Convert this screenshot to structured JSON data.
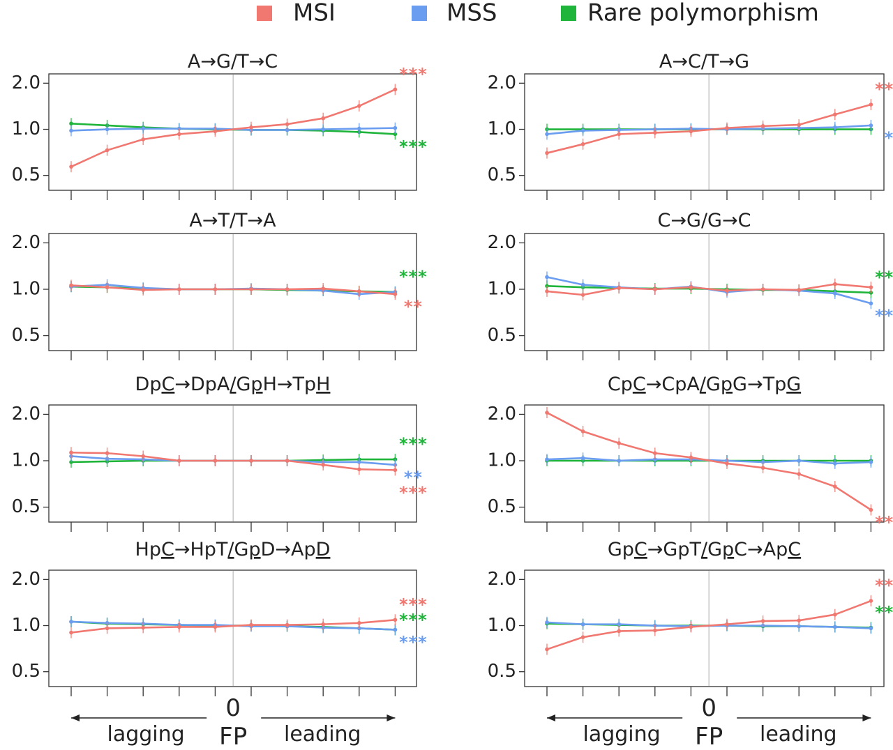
{
  "legend": [
    {
      "name": "MSI",
      "color": "#f07870"
    },
    {
      "name": "MSS",
      "color": "#6a9df0"
    },
    {
      "name": "Rare polymorphism",
      "color": "#1fb43a"
    }
  ],
  "axis": {
    "zero_label": "0",
    "fp_label": "FP",
    "left_label": "lagging",
    "right_label": "leading"
  },
  "chart_data": [
    {
      "type": "line",
      "title": "A→G/T→C",
      "y_ticks": [
        "2.0",
        "1.0",
        "0.5"
      ],
      "ylim": [
        0.4,
        2.3
      ],
      "x": [
        -5,
        -4,
        -3,
        -2,
        -1,
        1,
        2,
        3,
        4,
        5
      ],
      "series": [
        {
          "name": "MSI",
          "values": [
            0.57,
            0.73,
            0.86,
            0.93,
            0.97,
            1.03,
            1.08,
            1.18,
            1.42,
            1.82
          ],
          "significance": "***"
        },
        {
          "name": "MSS",
          "values": [
            0.98,
            1.0,
            1.01,
            1.01,
            1.01,
            0.99,
            0.99,
            1.0,
            1.01,
            1.02
          ],
          "significance": ""
        },
        {
          "name": "Rare polymorphism",
          "values": [
            1.09,
            1.06,
            1.03,
            1.01,
            1.0,
            0.99,
            0.99,
            0.98,
            0.96,
            0.93
          ],
          "significance": "***"
        }
      ]
    },
    {
      "type": "line",
      "title": "A→C/T→G",
      "y_ticks": [
        "2.0",
        "1.0",
        "0.5"
      ],
      "ylim": [
        0.4,
        2.3
      ],
      "x": [
        -5,
        -4,
        -3,
        -2,
        -1,
        1,
        2,
        3,
        4,
        5
      ],
      "series": [
        {
          "name": "MSI",
          "values": [
            0.7,
            0.8,
            0.93,
            0.95,
            0.97,
            1.02,
            1.05,
            1.07,
            1.25,
            1.45
          ],
          "significance": "***"
        },
        {
          "name": "MSS",
          "values": [
            0.93,
            0.98,
            0.99,
            1.0,
            1.01,
            1.0,
            1.01,
            1.02,
            1.03,
            1.06
          ],
          "significance": "*"
        },
        {
          "name": "Rare polymorphism",
          "values": [
            1.0,
            1.0,
            1.0,
            1.0,
            1.0,
            1.0,
            1.0,
            1.0,
            1.0,
            1.0
          ],
          "significance": ""
        }
      ]
    },
    {
      "type": "line",
      "title": "A→T/T→A",
      "y_ticks": [
        "2.0",
        "1.0",
        "0.5"
      ],
      "ylim": [
        0.4,
        2.3
      ],
      "x": [
        -5,
        -4,
        -3,
        -2,
        -1,
        1,
        2,
        3,
        4,
        5
      ],
      "series": [
        {
          "name": "MSI",
          "values": [
            1.06,
            1.03,
            0.99,
            1.0,
            1.0,
            1.0,
            1.0,
            1.01,
            0.97,
            0.93
          ],
          "significance": "**"
        },
        {
          "name": "MSS",
          "values": [
            1.04,
            1.07,
            1.02,
            1.0,
            1.0,
            1.01,
            1.0,
            0.98,
            0.93,
            0.96
          ],
          "significance": ""
        },
        {
          "name": "Rare polymorphism",
          "values": [
            1.04,
            1.03,
            1.01,
            1.0,
            1.0,
            1.0,
            0.99,
            0.98,
            0.97,
            0.96
          ],
          "significance": "***"
        }
      ]
    },
    {
      "type": "line",
      "title": "C→G/G→C",
      "y_ticks": [
        "2.0",
        "1.0",
        "0.5"
      ],
      "ylim": [
        0.4,
        2.3
      ],
      "x": [
        -5,
        -4,
        -3,
        -2,
        -1,
        1,
        2,
        3,
        4,
        5
      ],
      "series": [
        {
          "name": "MSI",
          "values": [
            0.97,
            0.92,
            1.02,
            1.0,
            1.03,
            0.98,
            1.0,
            0.99,
            1.08,
            1.03
          ],
          "significance": ""
        },
        {
          "name": "MSS",
          "values": [
            1.2,
            1.07,
            1.03,
            1.0,
            1.04,
            0.96,
            1.0,
            0.98,
            0.94,
            0.81
          ],
          "significance": "***"
        },
        {
          "name": "Rare polymorphism",
          "values": [
            1.05,
            1.03,
            1.02,
            1.01,
            1.01,
            1.0,
            0.99,
            0.99,
            0.97,
            0.95
          ],
          "significance": "***"
        }
      ]
    },
    {
      "type": "line",
      "title": "DpC→DpA/GpH→TpH",
      "underline_chars": [
        2,
        7,
        9,
        14
      ],
      "y_ticks": [
        "2.0",
        "1.0",
        "0.5"
      ],
      "ylim": [
        0.4,
        2.3
      ],
      "x": [
        -5,
        -4,
        -3,
        -2,
        -1,
        1,
        2,
        3,
        4,
        5
      ],
      "series": [
        {
          "name": "MSI",
          "values": [
            1.13,
            1.12,
            1.07,
            1.0,
            1.0,
            1.0,
            1.0,
            0.94,
            0.88,
            0.87
          ],
          "significance": "***"
        },
        {
          "name": "MSS",
          "values": [
            1.07,
            1.03,
            1.02,
            1.0,
            1.0,
            1.0,
            1.0,
            0.98,
            0.98,
            0.94
          ],
          "significance": "**"
        },
        {
          "name": "Rare polymorphism",
          "values": [
            0.98,
            0.99,
            1.0,
            1.0,
            1.0,
            1.0,
            1.0,
            1.01,
            1.02,
            1.02
          ],
          "significance": "***"
        }
      ]
    },
    {
      "type": "line",
      "title": "CpC→CpA/GpG→TpG",
      "underline_chars": [
        2,
        7,
        9,
        14
      ],
      "y_ticks": [
        "2.0",
        "1.0",
        "0.5"
      ],
      "ylim": [
        0.4,
        2.3
      ],
      "x": [
        -5,
        -4,
        -3,
        -2,
        -1,
        1,
        2,
        3,
        4,
        5
      ],
      "series": [
        {
          "name": "MSI",
          "values": [
            2.05,
            1.55,
            1.3,
            1.12,
            1.05,
            0.96,
            0.9,
            0.82,
            0.68,
            0.48
          ],
          "significance": "***"
        },
        {
          "name": "MSS",
          "values": [
            1.02,
            1.04,
            1.0,
            1.02,
            1.02,
            1.0,
            0.98,
            1.0,
            0.96,
            0.98
          ],
          "significance": ""
        },
        {
          "name": "Rare polymorphism",
          "values": [
            1.0,
            1.0,
            1.0,
            1.0,
            1.0,
            1.0,
            1.0,
            1.0,
            1.0,
            1.0
          ],
          "significance": ""
        }
      ]
    },
    {
      "type": "line",
      "title": "HpC→HpT/GpD→ApD",
      "underline_chars": [
        2,
        7,
        9,
        14
      ],
      "y_ticks": [
        "2.0",
        "1.0",
        "0.5"
      ],
      "ylim": [
        0.4,
        2.3
      ],
      "x": [
        -5,
        -4,
        -3,
        -2,
        -1,
        1,
        2,
        3,
        4,
        5
      ],
      "series": [
        {
          "name": "MSI",
          "values": [
            0.9,
            0.96,
            0.97,
            0.98,
            0.98,
            1.01,
            1.01,
            1.02,
            1.04,
            1.09
          ],
          "significance": "***"
        },
        {
          "name": "MSS",
          "values": [
            1.06,
            1.04,
            1.03,
            1.01,
            1.01,
            0.99,
            0.99,
            0.97,
            0.96,
            0.94
          ],
          "significance": "***"
        },
        {
          "name": "Rare polymorphism",
          "values": [
            1.06,
            1.03,
            1.02,
            1.01,
            1.0,
            1.0,
            0.99,
            0.98,
            0.96,
            0.94
          ],
          "significance": "***"
        }
      ]
    },
    {
      "type": "line",
      "title": "GpC→GpT/GpC→ApC",
      "underline_chars": [
        2,
        7,
        9,
        14
      ],
      "y_ticks": [
        "2.0",
        "1.0",
        "0.5"
      ],
      "ylim": [
        0.4,
        2.3
      ],
      "x": [
        -5,
        -4,
        -3,
        -2,
        -1,
        1,
        2,
        3,
        4,
        5
      ],
      "series": [
        {
          "name": "MSI",
          "values": [
            0.7,
            0.84,
            0.92,
            0.93,
            0.98,
            1.02,
            1.07,
            1.08,
            1.18,
            1.45
          ],
          "significance": "***"
        },
        {
          "name": "MSS",
          "values": [
            1.05,
            1.02,
            1.02,
            1.0,
            0.99,
            1.0,
            1.0,
            0.99,
            0.98,
            0.96
          ],
          "significance": ""
        },
        {
          "name": "Rare polymorphism",
          "values": [
            1.03,
            1.02,
            1.01,
            1.0,
            1.0,
            1.0,
            0.99,
            0.99,
            0.98,
            0.97
          ],
          "significance": "***"
        }
      ]
    }
  ]
}
